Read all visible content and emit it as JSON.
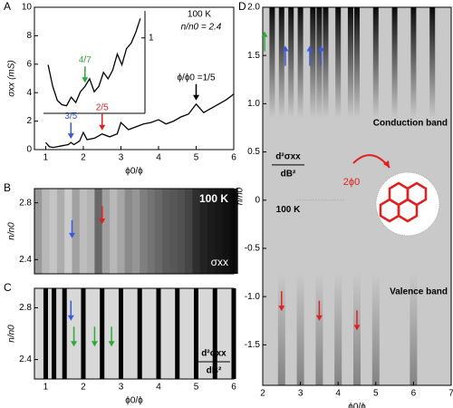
{
  "chart_data": [
    {
      "type": "line",
      "panel_label": "A",
      "ylabel": "σxx (mS)",
      "xlabel": "ϕ0/ϕ",
      "xlim": [
        0.7,
        6
      ],
      "ylim": [
        0,
        10
      ],
      "xticks": [
        1,
        2,
        3,
        4,
        5,
        6
      ],
      "yticks": [
        0,
        2,
        4,
        6,
        8,
        10
      ],
      "x": [
        1.0,
        1.1,
        1.2,
        1.3,
        1.4,
        1.5,
        1.6,
        1.67,
        1.75,
        1.9,
        2.0,
        2.1,
        2.3,
        2.5,
        2.7,
        2.9,
        3.0,
        3.2,
        3.4,
        3.6,
        3.8,
        4.0,
        4.2,
        4.4,
        4.6,
        4.8,
        5.0,
        5.2,
        5.4,
        5.6,
        5.8,
        6.0
      ],
      "values": [
        0.5,
        0.2,
        0.15,
        0.2,
        0.25,
        0.3,
        0.35,
        0.5,
        0.35,
        0.6,
        1.2,
        0.7,
        0.8,
        1.1,
        0.9,
        1.1,
        1.9,
        1.4,
        1.6,
        1.8,
        1.9,
        2.1,
        1.8,
        2.0,
        2.3,
        2.5,
        3.2,
        2.6,
        2.9,
        3.2,
        3.5,
        3.9
      ],
      "color": "#000000",
      "annotations": [
        {
          "text": "100 K"
        },
        {
          "text": "n/n0 = 2.4"
        }
      ],
      "arrows": [
        {
          "x": 1.67,
          "y": 0.5,
          "color": "#3a5bd9",
          "label": "3/5"
        },
        {
          "x": 2.5,
          "y": 1.1,
          "color": "#e02020",
          "label": "2/5"
        },
        {
          "x": 5,
          "y": 3.2,
          "color": "#000000",
          "label": "ϕ/ϕ0 =1/5"
        }
      ],
      "inset": {
        "xlim": [
          0.95,
          2.05
        ],
        "ylim": [
          0.3,
          1.25
        ],
        "yticks": [
          1
        ],
        "x": [
          1.0,
          1.05,
          1.1,
          1.15,
          1.2,
          1.25,
          1.3,
          1.35,
          1.4,
          1.45,
          1.5,
          1.55,
          1.6,
          1.65,
          1.7,
          1.75,
          1.8,
          1.85,
          1.9,
          1.95,
          2.0
        ],
        "values": [
          0.75,
          0.55,
          0.42,
          0.38,
          0.37,
          0.45,
          0.4,
          0.5,
          0.55,
          0.62,
          0.5,
          0.55,
          0.68,
          0.62,
          0.7,
          0.85,
          0.75,
          0.9,
          0.95,
          1.05,
          1.18
        ],
        "arrow": {
          "x": 1.4,
          "y": 0.55,
          "color": "#2fa83a",
          "label": "4/7"
        }
      }
    },
    {
      "type": "heatmap",
      "panel_label": "B",
      "ylabel": "n/n0",
      "title": "100 K",
      "quantity": "σxx",
      "xlim": [
        0.7,
        6
      ],
      "ylim": [
        2.3,
        2.9
      ],
      "yticks": [
        2.4,
        2.8
      ],
      "x": [
        1.0,
        1.2,
        1.4,
        1.6,
        1.8,
        2.0,
        2.2,
        2.4,
        2.6,
        2.8,
        3.0,
        3.2,
        3.4,
        3.6,
        3.8,
        4.0,
        4.2,
        4.4,
        4.6,
        4.8,
        5.0,
        5.2,
        5.4,
        5.6,
        5.8,
        6.0
      ],
      "values": [
        0.8,
        0.85,
        0.75,
        0.88,
        0.7,
        0.82,
        0.78,
        0.45,
        0.7,
        0.8,
        0.72,
        0.6,
        0.65,
        0.55,
        0.5,
        0.45,
        0.4,
        0.38,
        0.35,
        0.3,
        0.2,
        0.15,
        0.12,
        0.1,
        0.08,
        0.05
      ],
      "arrows": [
        {
          "x": 1.7,
          "y": 2.55,
          "color": "#3a5bd9"
        },
        {
          "x": 2.5,
          "y": 2.65,
          "color": "#e02020"
        }
      ]
    },
    {
      "type": "stripes",
      "panel_label": "C",
      "ylabel": "n/n0",
      "xlabel": "ϕ0/ϕ",
      "numerator": "d²σxx",
      "denominator": "dB²",
      "xlim": [
        0.7,
        6
      ],
      "ylim": [
        2.25,
        2.95
      ],
      "xticks": [
        1,
        2,
        3,
        4,
        5,
        6
      ],
      "yticks": [
        2.4,
        2.8
      ],
      "stripe_x": [
        1.0,
        1.22,
        1.5,
        2.0,
        2.5,
        3.0,
        3.5,
        4.0,
        4.5,
        5.0,
        5.5,
        6.0
      ],
      "arrows": [
        {
          "x": 1.67,
          "y": 2.7,
          "color": "#3a5bd9"
        },
        {
          "x": 1.75,
          "y": 2.5,
          "color": "#2fa83a"
        },
        {
          "x": 2.3,
          "y": 2.5,
          "color": "#2fa83a"
        },
        {
          "x": 2.75,
          "y": 2.5,
          "color": "#2fa83a"
        }
      ]
    },
    {
      "type": "stripes",
      "panel_label": "D",
      "ylabel": "n/n0",
      "xlabel": "ϕ0/ϕ",
      "numerator": "d²σxx",
      "denominator": "dB²",
      "temperature": "100 K",
      "flux_label": "2ϕ0",
      "conduction_label": "Conduction band",
      "valence_label": "Valence band",
      "xlim": [
        2,
        7
      ],
      "ylim": [
        -1.92,
        2.0
      ],
      "xticks": [
        2,
        3,
        4,
        5,
        6,
        7
      ],
      "yticks": [
        -1.5,
        -1.0,
        -0.5,
        0,
        0.5,
        1.0,
        1.5,
        2.0
      ],
      "yticklabels": [
        {
          "value": -1.5,
          "label": "-1.5"
        },
        {
          "value": -1.0,
          "label": "-1.0"
        },
        {
          "value": -0.5,
          "label": "-0.5"
        },
        {
          "value": 0,
          "label": "0"
        },
        {
          "value": 0.5,
          "label": "0.5"
        },
        {
          "value": 1.0,
          "label": "1.0"
        },
        {
          "value": 1.5,
          "label": "1.5"
        },
        {
          "value": 2.0,
          "label": "2.0"
        }
      ],
      "conduction_stripes": [
        2.25,
        2.5,
        2.75,
        3.0,
        3.33,
        3.5,
        3.67,
        4.0,
        4.33,
        4.5,
        5.0,
        5.5,
        6.0,
        6.5
      ],
      "valence_stripes": [
        2.5,
        3.0,
        3.5,
        4.0,
        4.5,
        5.0,
        6.0
      ],
      "arrows": [
        {
          "x": 2.05,
          "y": 1.75,
          "color": "#2fa83a",
          "up": true
        },
        {
          "x": 2.6,
          "y": 1.6,
          "color": "#3a5bd9",
          "up": true
        },
        {
          "x": 3.25,
          "y": 1.6,
          "color": "#3a5bd9",
          "up": true
        },
        {
          "x": 3.55,
          "y": 1.6,
          "color": "#3a5bd9",
          "up": true
        },
        {
          "x": 2.5,
          "y": -1.15,
          "color": "#e02020"
        },
        {
          "x": 3.5,
          "y": -1.25,
          "color": "#e02020"
        },
        {
          "x": 4.5,
          "y": -1.35,
          "color": "#e02020"
        }
      ]
    }
  ]
}
